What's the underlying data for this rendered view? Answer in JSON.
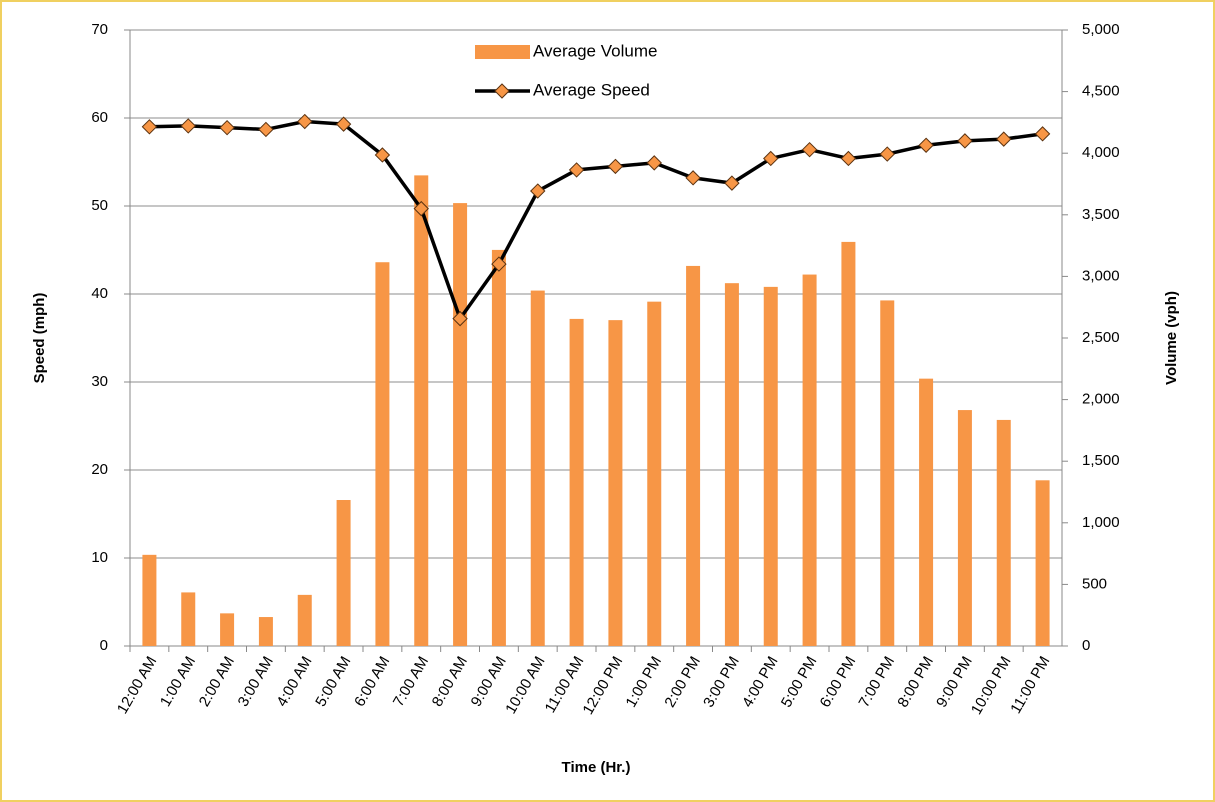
{
  "chart_data": {
    "type": "bar_line",
    "x_label": "Time (Hr.)",
    "y_label": "Speed (mph)",
    "y2_label": "Volume (vph)",
    "categories": [
      "12:00 AM",
      "1:00 AM",
      "2:00 AM",
      "3:00 AM",
      "4:00 AM",
      "5:00 AM",
      "6:00 AM",
      "7:00 AM",
      "8:00 AM",
      "9:00 AM",
      "10:00 AM",
      "11:00 AM",
      "12:00 PM",
      "1:00 PM",
      "2:00 PM",
      "3:00 PM",
      "4:00 PM",
      "5:00 PM",
      "6:00 PM",
      "7:00 PM",
      "8:00 PM",
      "9:00 PM",
      "10:00 PM",
      "11:00 PM"
    ],
    "series": [
      {
        "name": "Average Volume",
        "type": "bar",
        "axis": "y2",
        "color": "#f79646",
        "values": [
          740,
          435,
          265,
          235,
          415,
          1185,
          3115,
          3820,
          3595,
          3215,
          2885,
          2655,
          2645,
          2795,
          3085,
          2945,
          2915,
          3015,
          3280,
          2805,
          2170,
          1915,
          1835,
          1345
        ]
      },
      {
        "name": "Average Speed",
        "type": "line",
        "axis": "y",
        "color": "#000000",
        "marker_color": "#f79646",
        "values": [
          59.0,
          59.1,
          58.9,
          58.7,
          59.6,
          59.3,
          55.8,
          49.7,
          37.2,
          43.4,
          51.7,
          54.1,
          54.5,
          54.9,
          53.2,
          52.6,
          55.4,
          56.4,
          55.4,
          55.9,
          56.9,
          57.4,
          57.6,
          58.2
        ]
      }
    ],
    "ylim": [
      0,
      70
    ],
    "yticks": [
      0,
      10,
      20,
      30,
      40,
      50,
      60,
      70
    ],
    "y2lim": [
      0,
      5000
    ],
    "y2ticks": [
      0,
      500,
      {
        "value": 1000,
        "label": "1,000"
      },
      {
        "value": 1500,
        "label": "1,500"
      },
      {
        "value": 2000,
        "label": "2,000"
      },
      {
        "value": 2500,
        "label": "2,500"
      },
      {
        "value": 3000,
        "label": "3,000"
      },
      {
        "value": 3500,
        "label": "3,500"
      },
      {
        "value": 4000,
        "label": "4,000"
      },
      {
        "value": 4500,
        "label": "4,500"
      },
      {
        "value": 5000,
        "label": "5,000"
      }
    ],
    "grid": true,
    "legend": "top"
  }
}
